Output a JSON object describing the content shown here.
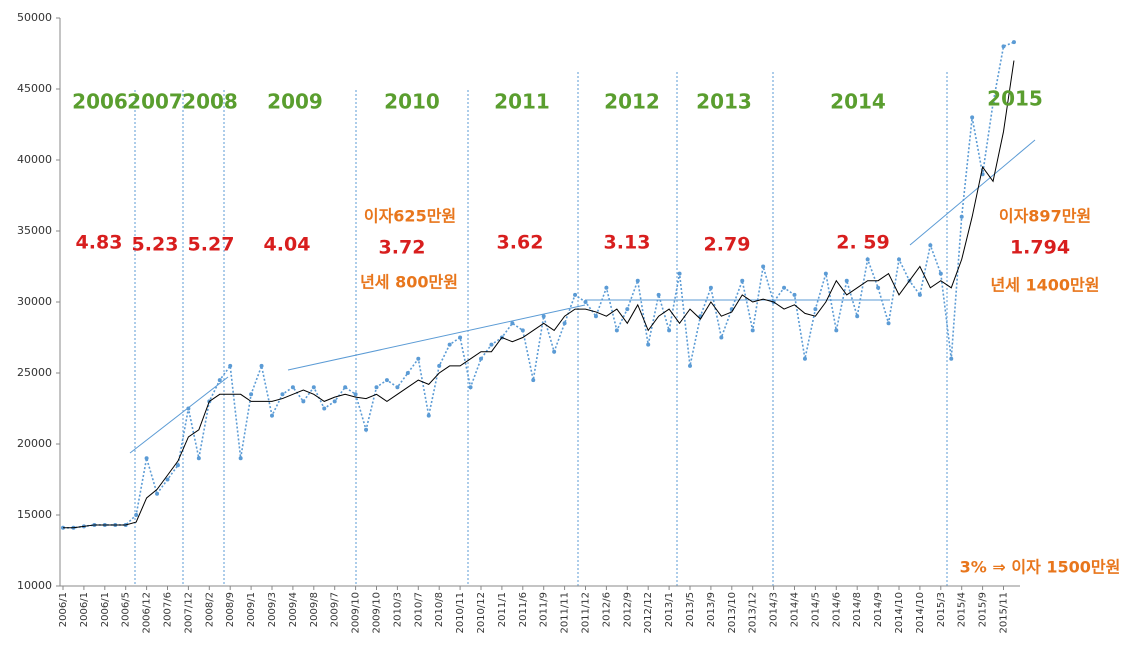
{
  "chart_data": {
    "type": "line",
    "categories": [
      "2006/1",
      null,
      "2006/1",
      null,
      "2006/1",
      null,
      "2006/5",
      null,
      "2006/12",
      null,
      "2007/6",
      null,
      "2007/12",
      null,
      "2008/2",
      null,
      "2008/9",
      null,
      "2009/1",
      null,
      "2009/3",
      null,
      "2009/4",
      null,
      "2009/8",
      null,
      "2009/7",
      null,
      "2009/10",
      null,
      "2009/10",
      null,
      "2010/3",
      null,
      "2010/7",
      null,
      "2010/8",
      null,
      "2010/11",
      null,
      "2010/12",
      null,
      "2011/1",
      null,
      "2011/6",
      null,
      "2011/9",
      null,
      "2011/11",
      null,
      "2011/12",
      null,
      "2012/6",
      null,
      "2012/9",
      null,
      "2012/12",
      null,
      "2013/1",
      null,
      "2013/5",
      null,
      "2013/9",
      null,
      "2013/10",
      null,
      "2013/12",
      null,
      "2014/3",
      null,
      "2014/4",
      null,
      "2014/5",
      null,
      "2014/6",
      null,
      "2014/8",
      null,
      "2014/9",
      null,
      "2014/10",
      null,
      "2014/10",
      null,
      "2015/3",
      null,
      "2015/4",
      null,
      "2015/9",
      null,
      "2015/11",
      null
    ],
    "series": [
      {
        "color": "#5b9bd5",
        "values": [
          14100,
          14100,
          14200,
          14300,
          14300,
          14300,
          14300,
          15000,
          19000,
          16500,
          17500,
          18500,
          22500,
          19000,
          23000,
          24500,
          25500,
          19000,
          23500,
          25500,
          22000,
          23500,
          24000,
          23000,
          24000,
          22500,
          23000,
          24000,
          23500,
          21000,
          24000,
          24500,
          24000,
          25000,
          26000,
          22000,
          25500,
          27000,
          27500,
          24000,
          26000,
          27000,
          27500,
          28500,
          28000,
          24500,
          29000,
          26500,
          28500,
          30500,
          30000,
          29000,
          31000,
          28000,
          29500,
          31500,
          27000,
          30500,
          28000,
          32000,
          25500,
          29000,
          31000,
          27500,
          29500,
          31500,
          28000,
          32500,
          30000,
          31000,
          30500,
          26000,
          29500,
          32000,
          28000,
          31500,
          29000,
          33000,
          31000,
          28500,
          33000,
          31500,
          30500,
          34000,
          32000,
          26000,
          36000,
          43000,
          39000,
          44000,
          48000,
          48300
        ]
      },
      {
        "color": "#000000",
        "values": [
          14100,
          14100,
          14200,
          14300,
          14300,
          14300,
          14300,
          14500,
          16200,
          16800,
          17800,
          18800,
          20500,
          21000,
          23000,
          23500,
          23500,
          23500,
          23000,
          23000,
          23000,
          23200,
          23500,
          23800,
          23500,
          23000,
          23300,
          23500,
          23300,
          23200,
          23500,
          23000,
          23500,
          24000,
          24500,
          24200,
          25000,
          25500,
          25500,
          26000,
          26500,
          26500,
          27500,
          27200,
          27500,
          28000,
          28500,
          28000,
          29000,
          29500,
          29500,
          29300,
          29000,
          29500,
          28500,
          29800,
          28000,
          29000,
          29500,
          28500,
          29500,
          28800,
          30000,
          29000,
          29300,
          30500,
          30000,
          30200,
          30000,
          29500,
          29800,
          29200,
          29000,
          30000,
          31500,
          30500,
          31000,
          31500,
          31500,
          32000,
          30500,
          31500,
          32500,
          31000,
          31500,
          31000,
          33000,
          36000,
          39500,
          38500,
          42000,
          47000
        ]
      }
    ],
    "ylim": [
      10000,
      50000
    ],
    "yticks": [
      10000,
      15000,
      20000,
      25000,
      30000,
      35000,
      40000,
      45000,
      50000
    ],
    "grid": false,
    "annotations": [
      "2006",
      "2007",
      "2008",
      "2009",
      "2010",
      "2011",
      "2012",
      "2013",
      "2014",
      "2015",
      "4.83",
      "5.23",
      "5.27",
      "4.04",
      "3.72",
      "3.62",
      "3.13",
      "2.79",
      "2. 59",
      "1.794",
      "이자625만원",
      "년세 800만원",
      "이자897만원",
      "년세 1400만원",
      "3% ⇒ 이자 1500만원"
    ]
  }
}
